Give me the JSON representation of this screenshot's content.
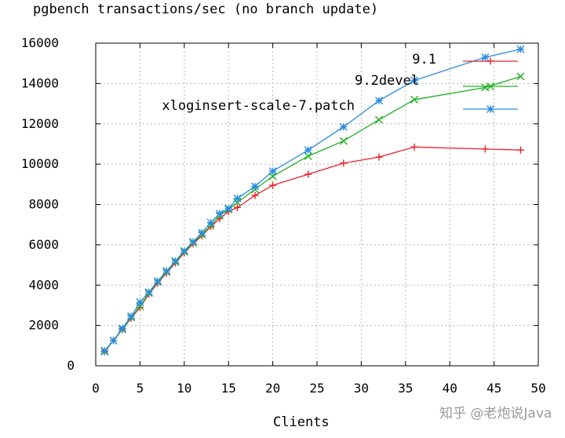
{
  "title": "pgbench transactions/sec (no branch update)",
  "watermark": "知乎 @老炮说Java",
  "chart_data": {
    "type": "line",
    "title": "pgbench transactions/sec (no branch update)",
    "xlabel": "Clients",
    "ylabel": "",
    "xlim": [
      0,
      50
    ],
    "ylim": [
      0,
      16000
    ],
    "xticks": [
      0,
      5,
      10,
      15,
      20,
      25,
      30,
      35,
      40,
      45,
      50
    ],
    "yticks": [
      0,
      2000,
      4000,
      6000,
      8000,
      10000,
      12000,
      14000,
      16000
    ],
    "grid": true,
    "legend_position": "top-right",
    "series": [
      {
        "name": "9.1",
        "color": "#e8202a",
        "marker": "plus",
        "x": [
          1,
          2,
          3,
          4,
          5,
          6,
          7,
          8,
          9,
          10,
          11,
          12,
          13,
          14,
          15,
          16,
          18,
          20,
          24,
          28,
          32,
          36,
          44,
          48
        ],
        "y": [
          700,
          1250,
          1800,
          2350,
          2900,
          3550,
          4100,
          4600,
          5100,
          5600,
          6050,
          6450,
          6900,
          7300,
          7650,
          7850,
          8450,
          8950,
          9500,
          10050,
          10350,
          10850,
          10750,
          10700
        ]
      },
      {
        "name": "9.2devel",
        "color": "#22b022",
        "marker": "cross",
        "x": [
          1,
          2,
          3,
          4,
          5,
          6,
          7,
          8,
          9,
          10,
          11,
          12,
          13,
          14,
          15,
          16,
          18,
          20,
          24,
          28,
          32,
          36,
          44,
          48
        ],
        "y": [
          700,
          1250,
          1800,
          2400,
          2950,
          3600,
          4150,
          4650,
          5150,
          5650,
          6100,
          6500,
          6950,
          7450,
          7750,
          8100,
          8750,
          9400,
          10400,
          11150,
          12200,
          13200,
          13800,
          14350
        ]
      },
      {
        "name": "xloginsert-scale-7.patch",
        "color": "#2a8ce0",
        "marker": "star",
        "x": [
          1,
          2,
          3,
          4,
          5,
          6,
          7,
          8,
          9,
          10,
          11,
          12,
          13,
          14,
          15,
          16,
          18,
          20,
          24,
          28,
          32,
          36,
          44,
          48
        ],
        "y": [
          750,
          1250,
          1850,
          2450,
          3150,
          3650,
          4200,
          4700,
          5200,
          5700,
          6150,
          6600,
          7100,
          7550,
          7800,
          8300,
          8900,
          9650,
          10700,
          11850,
          13150,
          14150,
          15300,
          15700
        ]
      }
    ]
  }
}
